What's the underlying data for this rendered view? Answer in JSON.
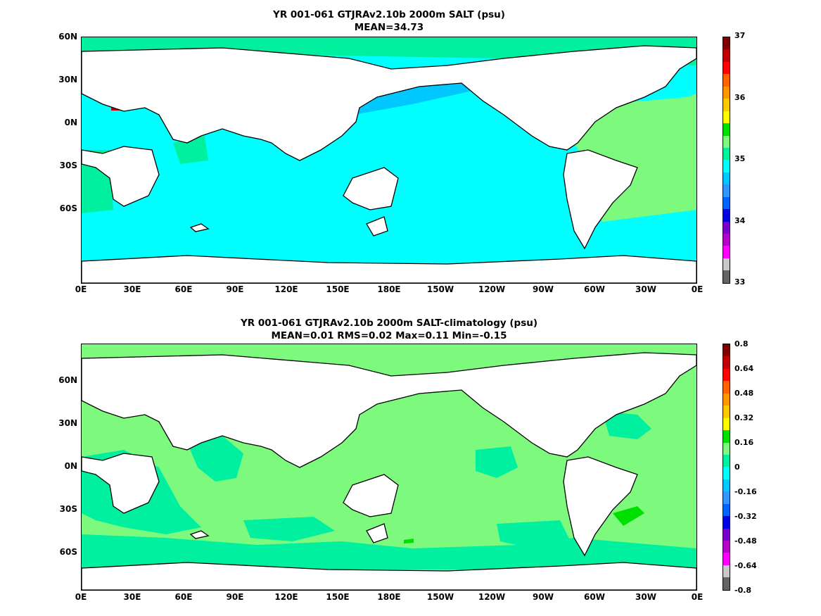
{
  "panel1": {
    "title_line1": "YR 001-061 GTJRAv2.10b 2000m SALT (psu)",
    "title_line2": "MEAN=34.73",
    "colorbar_labels": [
      "37",
      "36",
      "35",
      "34",
      "33"
    ],
    "colorbar_colors": [
      "#7f0000",
      "#c00000",
      "#ff0000",
      "#ff6400",
      "#ff9600",
      "#ffc800",
      "#ffff00",
      "#00e000",
      "#7dfa7d",
      "#00f0a0",
      "#00ffff",
      "#00c8ff",
      "#3296ff",
      "#0064ff",
      "#0000e0",
      "#7800c8",
      "#b400c8",
      "#ff00ff",
      "#c8c8c8",
      "#646464"
    ]
  },
  "panel2": {
    "title_line1": "YR 001-061 GTJRAv2.10b 2000m SALT-climatology (psu)",
    "title_line2": "MEAN=0.01   RMS=0.02   Max=0.11   Min=-0.15",
    "colorbar_labels": [
      "0.8",
      "0.64",
      "0.48",
      "0.32",
      "0.16",
      "0",
      "-0.16",
      "-0.32",
      "-0.48",
      "-0.64",
      "-0.8"
    ],
    "colorbar_colors": [
      "#7f0000",
      "#c00000",
      "#ff0000",
      "#ff6400",
      "#ff9600",
      "#ffc800",
      "#ffff00",
      "#00e000",
      "#7dfa7d",
      "#00f0a0",
      "#00ffff",
      "#00c8ff",
      "#3296ff",
      "#0064ff",
      "#0000e0",
      "#7800c8",
      "#b400c8",
      "#ff00ff",
      "#c8c8c8",
      "#646464"
    ]
  },
  "lat_labels": [
    "60N",
    "30N",
    "0N",
    "30S",
    "60S"
  ],
  "lon_labels": [
    "0E",
    "30E",
    "60E",
    "90E",
    "120E",
    "150E",
    "180E",
    "150W",
    "120W",
    "90W",
    "60W",
    "30W",
    "0E"
  ],
  "colors": {
    "ocean_salt": "#00ffff",
    "salt_atlantic": "#7dfa7d",
    "salt_highlat": "#00f0a0",
    "salt_np_low": "#00c8ff",
    "diff_zero": "#7dfa7d",
    "diff_slight_neg": "#00f0a0",
    "land": "#ffffff",
    "coast": "#000000"
  }
}
